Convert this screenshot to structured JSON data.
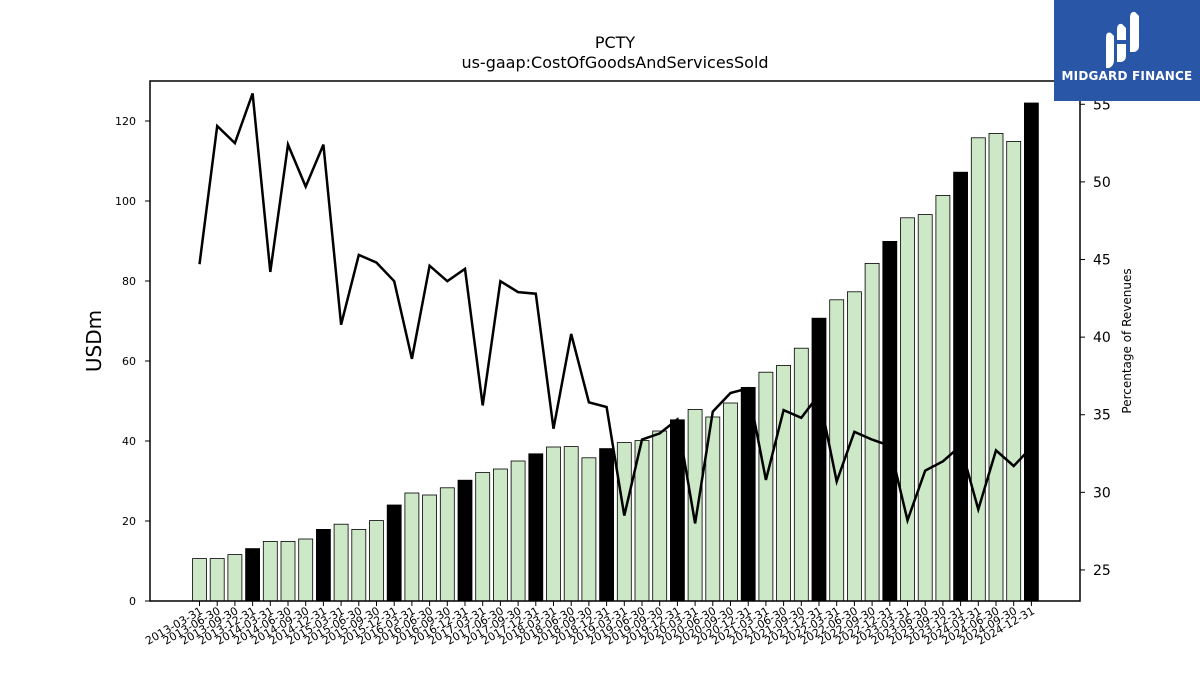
{
  "title": "PCTY",
  "subtitle": "us-gaap:CostOfGoodsAndServicesSold",
  "logo": {
    "name": "midgard-logo-icon",
    "text": "MIDGARD FINANCE"
  },
  "colors": {
    "bar_light": "#cce8c6",
    "bar_dark": "#000000",
    "line": "#000000",
    "brand": "#2a56a8"
  },
  "chart_data": {
    "type": "bar+line",
    "ylabel_left": "USDm",
    "ylabel_right": "Percentage of Revenues",
    "ylim_left": [
      0,
      130
    ],
    "ylim_right": [
      23,
      56.5
    ],
    "yticks_left": [
      0,
      20,
      40,
      60,
      80,
      100,
      120
    ],
    "yticks_right": [
      25,
      30,
      35,
      40,
      45,
      50,
      55
    ],
    "categories": [
      "2013-03-31",
      "2013-06-30",
      "2013-09-30",
      "2013-12-31",
      "2014-03-31",
      "2014-06-30",
      "2014-09-30",
      "2014-12-31",
      "2015-03-31",
      "2015-06-30",
      "2015-09-30",
      "2015-12-31",
      "2016-03-31",
      "2016-06-30",
      "2016-09-30",
      "2016-12-31",
      "2017-03-31",
      "2017-06-30",
      "2017-09-30",
      "2017-12-31",
      "2018-03-31",
      "2018-06-30",
      "2018-09-30",
      "2018-12-31",
      "2019-03-31",
      "2019-06-30",
      "2019-09-30",
      "2019-12-31",
      "2020-03-31",
      "2020-06-30",
      "2020-09-30",
      "2020-12-31",
      "2021-03-31",
      "2021-06-30",
      "2021-09-30",
      "2021-12-31",
      "2022-03-31",
      "2022-06-30",
      "2022-09-30",
      "2022-12-31",
      "2023-03-31",
      "2023-06-30",
      "2023-09-30",
      "2023-12-31",
      "2024-03-31",
      "2024-06-30",
      "2024-09-30",
      "2024-12-31"
    ],
    "series": [
      {
        "kind": "bar",
        "values": [
          10.6,
          10.6,
          11.6,
          13.1,
          14.9,
          14.9,
          15.5,
          17.9,
          19.2,
          17.9,
          20.1,
          24.0,
          27.0,
          26.5,
          28.3,
          30.2,
          32.1,
          33.0,
          35.0,
          36.8,
          38.5,
          38.6,
          35.8,
          38.1,
          39.6,
          40.1,
          42.5,
          45.3,
          47.9,
          46.0,
          49.5,
          53.4,
          57.2,
          58.9,
          63.2,
          70.7,
          75.3,
          77.3,
          84.4,
          89.9,
          95.8,
          96.6,
          101.4,
          107.2,
          115.8,
          116.9,
          114.9,
          124.5
        ],
        "highlight": [
          false,
          false,
          false,
          true,
          false,
          false,
          false,
          true,
          false,
          false,
          false,
          true,
          false,
          false,
          false,
          true,
          false,
          false,
          false,
          true,
          false,
          false,
          false,
          true,
          false,
          false,
          false,
          true,
          false,
          false,
          false,
          true,
          false,
          false,
          false,
          true,
          false,
          false,
          false,
          true,
          false,
          false,
          false,
          true,
          false,
          false,
          false,
          true
        ]
      },
      {
        "kind": "line",
        "axis": "right",
        "values": [
          44.7,
          53.6,
          52.5,
          55.7,
          44.2,
          52.4,
          49.7,
          52.4,
          40.8,
          45.3,
          44.8,
          43.6,
          38.6,
          44.6,
          43.6,
          44.4,
          35.6,
          43.6,
          42.9,
          42.8,
          34.1,
          40.2,
          35.8,
          35.5,
          28.5,
          33.4,
          33.8,
          34.7,
          28.0,
          35.2,
          36.4,
          36.7,
          30.8,
          35.3,
          34.8,
          36.3,
          30.7,
          33.9,
          33.4,
          33.0,
          28.2,
          31.4,
          32.0,
          33.0,
          28.9,
          32.7,
          31.7,
          32.9
        ]
      }
    ]
  }
}
